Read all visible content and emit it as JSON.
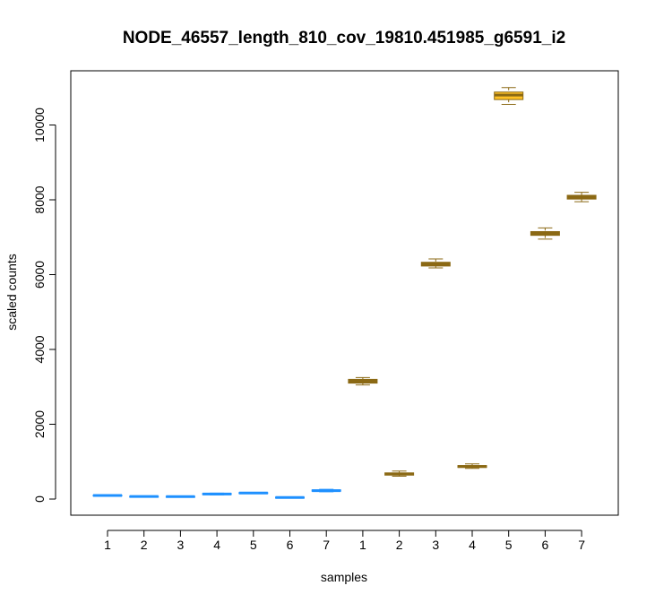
{
  "chart_data": {
    "type": "boxplot",
    "title": "NODE_46557_length_810_cov_19810.451985_g6591_i2",
    "xlabel": "samples",
    "ylabel": "scaled counts",
    "ylim": [
      0,
      11000
    ],
    "yticks": [
      0,
      2000,
      4000,
      6000,
      8000,
      10000
    ],
    "categories": [
      "1",
      "2",
      "3",
      "4",
      "5",
      "6",
      "7",
      "1",
      "2",
      "3",
      "4",
      "5",
      "6",
      "7"
    ],
    "groups": [
      {
        "color": "#1e90ff",
        "edge": "#1e90ff",
        "boxes": [
          {
            "label": "1",
            "min": 80,
            "q1": 85,
            "median": 95,
            "q3": 105,
            "max": 110
          },
          {
            "label": "2",
            "min": 55,
            "q1": 60,
            "median": 68,
            "q3": 75,
            "max": 80
          },
          {
            "label": "3",
            "min": 55,
            "q1": 60,
            "median": 65,
            "q3": 72,
            "max": 78
          },
          {
            "label": "4",
            "min": 110,
            "q1": 120,
            "median": 135,
            "q3": 150,
            "max": 160
          },
          {
            "label": "5",
            "min": 145,
            "q1": 152,
            "median": 162,
            "q3": 172,
            "max": 180
          },
          {
            "label": "6",
            "min": 30,
            "q1": 35,
            "median": 42,
            "q3": 50,
            "max": 55
          },
          {
            "label": "7",
            "min": 195,
            "q1": 210,
            "median": 225,
            "q3": 245,
            "max": 260
          }
        ]
      },
      {
        "color": "#8b6914",
        "edge": "#8b6914",
        "boxes": [
          {
            "label": "1",
            "min": 3050,
            "q1": 3100,
            "median": 3150,
            "q3": 3200,
            "max": 3250
          },
          {
            "label": "2",
            "min": 610,
            "q1": 640,
            "median": 670,
            "q3": 700,
            "max": 750
          },
          {
            "label": "3",
            "min": 6180,
            "q1": 6230,
            "median": 6280,
            "q3": 6330,
            "max": 6420
          },
          {
            "label": "4",
            "min": 820,
            "q1": 845,
            "median": 870,
            "q3": 895,
            "max": 940
          },
          {
            "label": "5",
            "min": 10550,
            "q1": 10680,
            "median": 10800,
            "q3": 10880,
            "max": 11000,
            "fill": "#ffc125"
          },
          {
            "label": "6",
            "min": 6950,
            "q1": 7050,
            "median": 7100,
            "q3": 7150,
            "max": 7250
          },
          {
            "label": "7",
            "min": 7950,
            "q1": 8020,
            "median": 8070,
            "q3": 8120,
            "max": 8200
          }
        ]
      }
    ]
  }
}
